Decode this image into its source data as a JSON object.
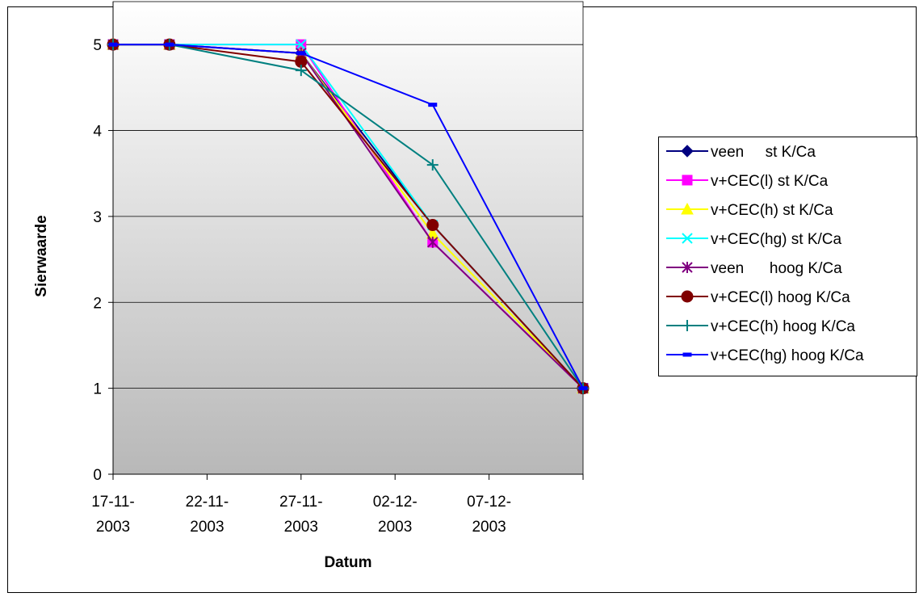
{
  "chart_data": {
    "type": "line",
    "title": "",
    "xlabel": "Datum",
    "ylabel": "Sierwaarde",
    "ylim": [
      0,
      5.5
    ],
    "yticks": [
      0,
      1,
      2,
      3,
      4,
      5
    ],
    "xlim": [
      "2003-11-17",
      "2003-12-12"
    ],
    "xticks": [
      {
        "date": "2003-11-17",
        "label": "17-11-2003"
      },
      {
        "date": "2003-11-22",
        "label": "22-11-2003"
      },
      {
        "date": "2003-11-27",
        "label": "27-11-2003"
      },
      {
        "date": "2003-12-02",
        "label": "02-12-2003"
      },
      {
        "date": "2003-12-07",
        "label": "07-12-2003"
      }
    ],
    "grid": "horizontal",
    "legend_position": "right",
    "series": [
      {
        "name": "veen     st K/Ca",
        "color": "#000080",
        "marker": "diamond",
        "x": [
          "2003-11-17",
          "2003-11-20",
          "2003-11-27",
          "2003-12-04",
          "2003-12-12"
        ],
        "y": [
          5,
          5,
          4.9,
          2.9,
          1
        ]
      },
      {
        "name": "v+CEC(l) st K/Ca",
        "color": "#FF00FF",
        "marker": "square",
        "x": [
          "2003-11-17",
          "2003-11-20",
          "2003-11-27",
          "2003-12-04",
          "2003-12-12"
        ],
        "y": [
          5,
          5,
          5,
          2.7,
          1
        ]
      },
      {
        "name": "v+CEC(h) st K/Ca",
        "color": "#FFFF00",
        "marker": "triangle",
        "x": [
          "2003-11-17",
          "2003-11-20",
          "2003-11-27",
          "2003-12-04",
          "2003-12-12"
        ],
        "y": [
          5,
          5,
          4.9,
          2.8,
          1
        ]
      },
      {
        "name": "v+CEC(hg) st K/Ca",
        "color": "#00FFFF",
        "marker": "x",
        "x": [
          "2003-11-17",
          "2003-11-20",
          "2003-11-27",
          "2003-12-04",
          "2003-12-12"
        ],
        "y": [
          5,
          5,
          5,
          2.9,
          1
        ]
      },
      {
        "name": "veen      hoog K/Ca",
        "color": "#800080",
        "marker": "asterisk",
        "x": [
          "2003-11-17",
          "2003-11-20",
          "2003-11-27",
          "2003-12-04",
          "2003-12-12"
        ],
        "y": [
          5,
          5,
          4.9,
          2.7,
          1
        ]
      },
      {
        "name": "v+CEC(l) hoog K/Ca",
        "color": "#800000",
        "marker": "circle",
        "x": [
          "2003-11-17",
          "2003-11-20",
          "2003-11-27",
          "2003-12-04",
          "2003-12-12"
        ],
        "y": [
          5,
          5,
          4.8,
          2.9,
          1
        ]
      },
      {
        "name": "v+CEC(h) hoog K/Ca",
        "color": "#008080",
        "marker": "plus",
        "x": [
          "2003-11-17",
          "2003-11-20",
          "2003-11-27",
          "2003-12-04",
          "2003-12-12"
        ],
        "y": [
          5,
          5,
          4.7,
          3.6,
          1
        ]
      },
      {
        "name": "v+CEC(hg) hoog K/Ca",
        "color": "#0000FF",
        "marker": "dash",
        "x": [
          "2003-11-17",
          "2003-11-20",
          "2003-11-27",
          "2003-12-04",
          "2003-12-12"
        ],
        "y": [
          5,
          5,
          4.9,
          4.3,
          1
        ]
      }
    ]
  }
}
